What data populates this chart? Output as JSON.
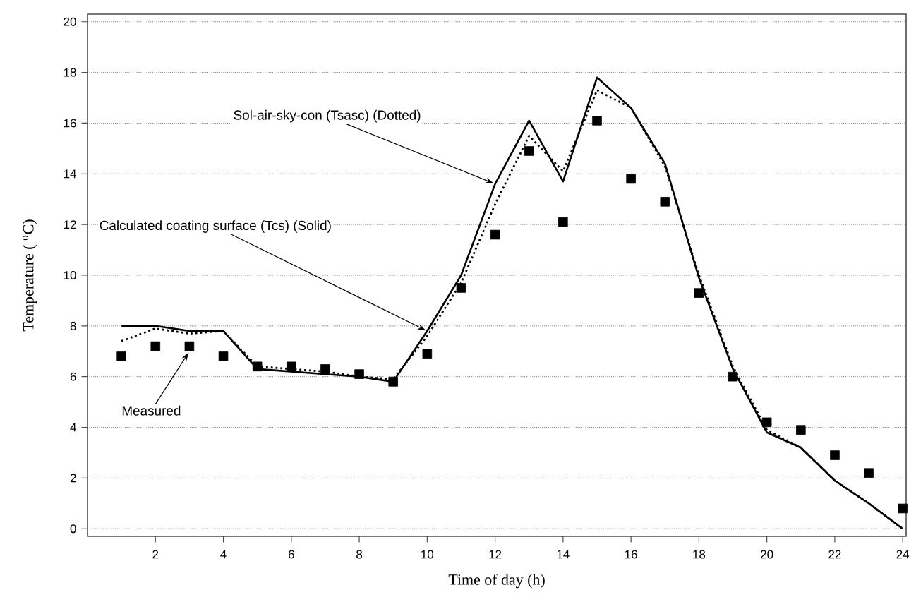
{
  "chart_data": {
    "type": "line",
    "xlabel": "Time of day (h)",
    "ylabel": "Temperature ( $^{o}$C)",
    "xlim": [
      0,
      24.1
    ],
    "ylim": [
      -0.3,
      20.3
    ],
    "xticks": [
      2,
      4,
      6,
      8,
      10,
      12,
      14,
      16,
      18,
      20,
      22,
      24
    ],
    "yticks": [
      0,
      2,
      4,
      6,
      8,
      10,
      12,
      14,
      16,
      18,
      20
    ],
    "grid": "y",
    "x": [
      1,
      2,
      3,
      4,
      5,
      6,
      7,
      8,
      9,
      10,
      11,
      12,
      13,
      14,
      15,
      16,
      17,
      18,
      19,
      20,
      21,
      22,
      23,
      24
    ],
    "series": [
      {
        "type": "scatter",
        "marker": "square",
        "color": "#000000",
        "values": [
          6.8,
          7.2,
          7.2,
          6.8,
          6.4,
          6.4,
          6.3,
          6.1,
          5.8,
          6.9,
          9.5,
          11.6,
          14.9,
          12.1,
          16.1,
          13.8,
          12.9,
          9.3,
          6.0,
          4.2,
          3.9,
          2.9,
          2.2,
          0.8
        ]
      },
      {
        "line_style": "solid",
        "color": "#000000",
        "values": [
          8.0,
          8.0,
          7.8,
          7.8,
          6.3,
          6.2,
          6.1,
          6.0,
          5.8,
          7.8,
          10.0,
          13.6,
          16.1,
          13.7,
          17.8,
          16.6,
          14.4,
          9.9,
          6.3,
          3.8,
          3.2,
          1.9,
          1.0,
          0.0
        ]
      },
      {
        "line_style": "dotted",
        "color": "#000000",
        "values": [
          7.4,
          7.9,
          7.7,
          7.8,
          6.4,
          6.3,
          6.2,
          6.0,
          5.9,
          7.6,
          9.7,
          12.8,
          15.5,
          14.1,
          17.3,
          16.6,
          14.3,
          10.0,
          6.4,
          3.9,
          3.2,
          1.9,
          1.0,
          0.0
        ]
      }
    ],
    "annotations": [
      {
        "text": "Sol-air-sky-con   (Tsasc) (Dotted)",
        "x": 12,
        "y": 13.6
      },
      {
        "text": "Calculated coating surface  (Tcs) (Solid)",
        "x": 10,
        "y": 7.8
      },
      {
        "text": "Measured",
        "x": 3,
        "y": 7.0
      }
    ]
  }
}
